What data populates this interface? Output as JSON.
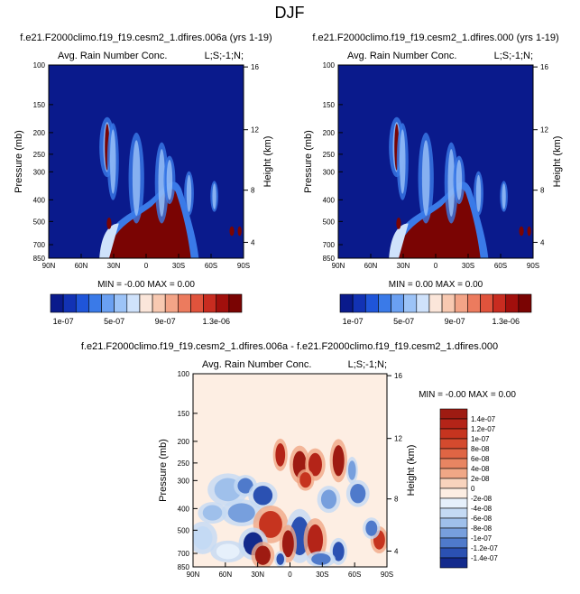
{
  "figure": {
    "title": "DJF",
    "panel_titles": [
      "f.e21.F2000climo.f19_f19.cesm2_1.dfires.006a (yrs 1-19)",
      "f.e21.F2000climo.f19_f19.cesm2_1.dfires.000 (yrs 1-19)",
      "f.e21.F2000climo.f19_f19.cesm2_1.dfires.006a - f.e21.F2000climo.f19_f19.cesm2_1.dfires.000"
    ]
  },
  "chart_data": [
    {
      "type": "heatmap",
      "name": "panel-a",
      "title": "f.e21.F2000climo.f19_f19.cesm2_1.dfires.006a (yrs 1-19)",
      "subtitle_left": "Avg. Rain Number Conc.",
      "subtitle_right": "L;S;-1;N;",
      "xlabel": "",
      "ylabel": "Pressure (mb)",
      "y2label": "Height (km)",
      "xticks": [
        "90N",
        "60N",
        "30N",
        "0",
        "30S",
        "60S",
        "90S"
      ],
      "yticks": [
        "100",
        "150",
        "200",
        "250",
        "300",
        "400",
        "500",
        "700",
        "850"
      ],
      "y2ticks": [
        "16",
        "12",
        "8",
        "4"
      ],
      "stats": "MIN = -0.00  MAX =  0.00",
      "colorbar_labels": [
        "1e-07",
        "5e-07",
        "9e-07",
        "1.3e-06"
      ],
      "colors": [
        "#0a1a8c",
        "#1232b4",
        "#1f55d9",
        "#3a7ae8",
        "#6aa0f2",
        "#9cc3f7",
        "#cfe2fb",
        "#fbe6da",
        "#f8c9b1",
        "#f3a487",
        "#ec7b5e",
        "#e0533c",
        "#c82c20",
        "#a10f0c",
        "#7a0403"
      ]
    },
    {
      "type": "heatmap",
      "name": "panel-b",
      "title": "f.e21.F2000climo.f19_f19.cesm2_1.dfires.000 (yrs 1-19)",
      "subtitle_left": "Avg. Rain Number Conc.",
      "subtitle_right": "L;S;-1;N;",
      "xlabel": "",
      "ylabel": "Pressure (mb)",
      "y2label": "Height (km)",
      "xticks": [
        "90N",
        "60N",
        "30N",
        "0",
        "30S",
        "60S",
        "90S"
      ],
      "yticks": [
        "100",
        "150",
        "200",
        "250",
        "300",
        "400",
        "500",
        "700",
        "850"
      ],
      "y2ticks": [
        "16",
        "12",
        "8",
        "4"
      ],
      "stats": "MIN =  0.00  MAX =  0.00",
      "colorbar_labels": [
        "1e-07",
        "5e-07",
        "9e-07",
        "1.3e-06"
      ]
    },
    {
      "type": "heatmap",
      "name": "panel-diff",
      "title": "f.e21.F2000climo.f19_f19.cesm2_1.dfires.006a - f.e21.F2000climo.f19_f19.cesm2_1.dfires.000",
      "subtitle_left": "Avg. Rain Number Conc.",
      "subtitle_right": "L;S;-1;N;",
      "xlabel": "",
      "ylabel": "Pressure (mb)",
      "y2label": "Height (km)",
      "xticks": [
        "90N",
        "60N",
        "30N",
        "0",
        "30S",
        "60S",
        "90S"
      ],
      "yticks": [
        "100",
        "150",
        "200",
        "250",
        "300",
        "400",
        "500",
        "700",
        "850"
      ],
      "y2ticks": [
        "16",
        "12",
        "8",
        "4"
      ],
      "stats": "MIN = -0.00  MAX =  0.00",
      "colorbar_labels": [
        "1.4e-07",
        "1.2e-07",
        "1e-07",
        "8e-08",
        "6e-08",
        "4e-08",
        "2e-08",
        "0",
        "-2e-08",
        "-4e-08",
        "-6e-08",
        "-8e-08",
        "-1e-07",
        "-1.2e-07",
        "-1.4e-07"
      ],
      "colors": [
        "#9e1b12",
        "#b42418",
        "#c6341f",
        "#d44a2e",
        "#df6544",
        "#e88562",
        "#f0a786",
        "#f8d3bd",
        "#fdeee3",
        "#e6f0fb",
        "#c4daf4",
        "#9fc0eb",
        "#779fdd",
        "#4f7acb",
        "#2b51b2",
        "#132a8c"
      ]
    }
  ]
}
